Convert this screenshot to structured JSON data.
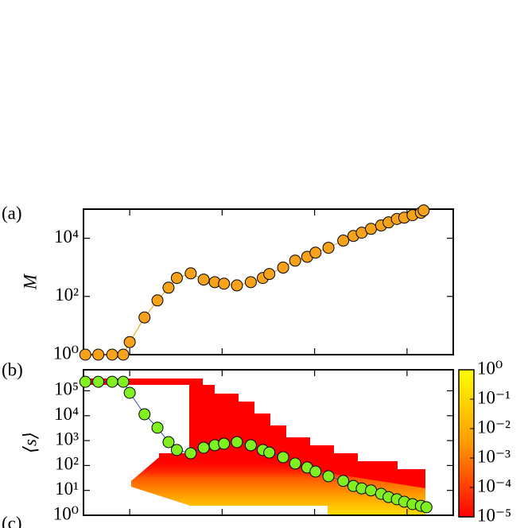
{
  "panel_labels": [
    "(a)",
    "(b)",
    "(c)"
  ],
  "chart_data": [
    {
      "type": "line",
      "ylabel": "M",
      "yscale": "log",
      "xlim": [
        -0.5,
        3.5
      ],
      "xticks": [
        0,
        1,
        2,
        3
      ],
      "ylim": [
        1,
        100000
      ],
      "yticks": [
        {
          "value": 1,
          "label": "10⁰"
        },
        {
          "value": 100,
          "label": "10²"
        },
        {
          "value": 10000,
          "label": "10⁴"
        }
      ],
      "color": "#e8a200",
      "marker_color": "#f7a21b",
      "x": [
        -0.48,
        -0.34,
        -0.19,
        -0.07,
        0,
        0.16,
        0.3,
        0.42,
        0.51,
        0.66,
        0.8,
        0.92,
        1.02,
        1.16,
        1.31,
        1.44,
        1.51,
        1.66,
        1.79,
        1.92,
        2.01,
        2.15,
        2.31,
        2.42,
        2.51,
        2.61,
        2.72,
        2.8,
        2.89,
        2.97,
        3.06,
        3.15,
        3.18
      ],
      "values": [
        1,
        1,
        1,
        1,
        2.7,
        19,
        73,
        200,
        430,
        620,
        380,
        310,
        275,
        240,
        310,
        430,
        590,
        980,
        1700,
        2300,
        3200,
        4700,
        8300,
        12000,
        15500,
        21000,
        27500,
        35000,
        46000,
        51000,
        62000,
        75000,
        90000
      ]
    },
    {
      "type": "line",
      "ylabel": "⟨s⟩",
      "yscale": "log",
      "xlim": [
        -0.5,
        3.5
      ],
      "xticks": [
        0,
        1,
        2,
        3
      ],
      "ylim": [
        1,
        700000
      ],
      "yticks": [
        {
          "value": 1,
          "label": "10⁰"
        },
        {
          "value": 10,
          "label": "10¹"
        },
        {
          "value": 100,
          "label": "10²"
        },
        {
          "value": 1000,
          "label": "10³"
        },
        {
          "value": 10000,
          "label": "10⁴"
        },
        {
          "value": 100000,
          "label": "10⁵"
        }
      ],
      "color": "#3050c0",
      "marker_color": "#80f020",
      "x": [
        -0.48,
        -0.34,
        -0.19,
        -0.07,
        0,
        0.16,
        0.3,
        0.42,
        0.51,
        0.66,
        0.8,
        0.92,
        1.02,
        1.16,
        1.31,
        1.44,
        1.51,
        1.66,
        1.79,
        1.92,
        2.01,
        2.15,
        2.31,
        2.42,
        2.51,
        2.61,
        2.72,
        2.8,
        2.89,
        2.97,
        3.06,
        3.15,
        3.21
      ],
      "values": [
        230000,
        230000,
        230000,
        230000,
        83000,
        11400,
        3300,
        870,
        420,
        310,
        520,
        650,
        750,
        870,
        650,
        420,
        330,
        215,
        120,
        83,
        57,
        37,
        24,
        15,
        12,
        10,
        7.3,
        5.4,
        4.4,
        3.5,
        2.8,
        2.4,
        2.1
      ],
      "colorbar": {
        "lim": [
          1e-05,
          1
        ],
        "colors": [
          "#ff0000",
          "#ff9a00",
          "#ffff00"
        ],
        "ticks": [
          {
            "value": 1,
            "label": "10⁰"
          },
          {
            "value": 0.1,
            "label": "10⁻¹"
          },
          {
            "value": 0.01,
            "label": "10⁻²"
          },
          {
            "value": 0.001,
            "label": "10⁻³"
          },
          {
            "value": 0.0001,
            "label": "10⁻⁴"
          },
          {
            "value": 1e-05,
            "label": "10⁻⁵"
          }
        ]
      }
    }
  ]
}
